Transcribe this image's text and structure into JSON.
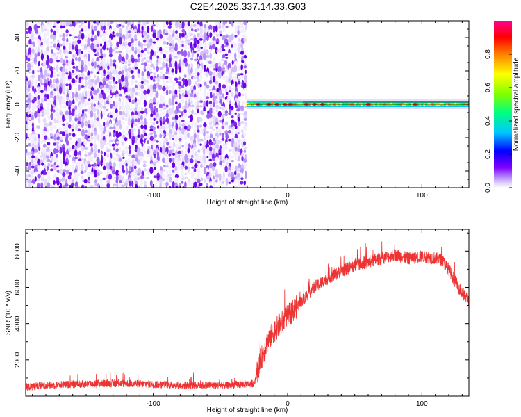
{
  "title": "C2E4.2025.337.14.33.G03",
  "chart_data": [
    {
      "type": "heatmap",
      "xlabel": "Height of straight line (km)",
      "ylabel": "Frequency (Hz)",
      "xlim": [
        -195,
        135
      ],
      "ylim": [
        -50,
        50
      ],
      "xticks": [
        -100,
        0,
        100
      ],
      "yticks": [
        -40,
        -20,
        0,
        20,
        40
      ],
      "noise_region_x": [
        -195,
        -30
      ],
      "signal_region_x": [
        -30,
        135
      ],
      "signal_frequency_hz": 0,
      "colorbar": {
        "label": "Normalized spectral amplitude",
        "range": [
          0.0,
          1.0
        ],
        "ticks": [
          0.0,
          0.2,
          0.4,
          0.6,
          0.8
        ],
        "colormap": [
          "#ffffff",
          "#c0a8f8",
          "#8000ff",
          "#0000ff",
          "#00c8ff",
          "#00ff80",
          "#80ff00",
          "#ffff00",
          "#ff8000",
          "#ff0000",
          "#ff0090"
        ]
      }
    },
    {
      "type": "line",
      "xlabel": "Height of straight line (km)",
      "ylabel": "SNR (10 * v/v)",
      "xlim": [
        -195,
        135
      ],
      "ylim": [
        0,
        9200
      ],
      "xticks": [
        -100,
        0,
        100
      ],
      "yticks": [
        2000,
        4000,
        6000,
        8000
      ],
      "series": [
        {
          "color": "#ee3333",
          "x": [
            -195,
            -180,
            -160,
            -140,
            -120,
            -100,
            -80,
            -60,
            -45,
            -35,
            -25,
            -20,
            -15,
            -10,
            -5,
            0,
            10,
            20,
            30,
            40,
            50,
            60,
            70,
            80,
            90,
            100,
            110,
            115,
            120,
            125,
            130,
            135
          ],
          "y": [
            500,
            600,
            650,
            700,
            700,
            650,
            600,
            600,
            600,
            650,
            700,
            2000,
            3000,
            3600,
            4000,
            4400,
            5200,
            6000,
            6500,
            6900,
            7200,
            7400,
            7600,
            7800,
            7600,
            7700,
            7600,
            7500,
            7000,
            6300,
            5700,
            5300
          ]
        }
      ]
    }
  ]
}
